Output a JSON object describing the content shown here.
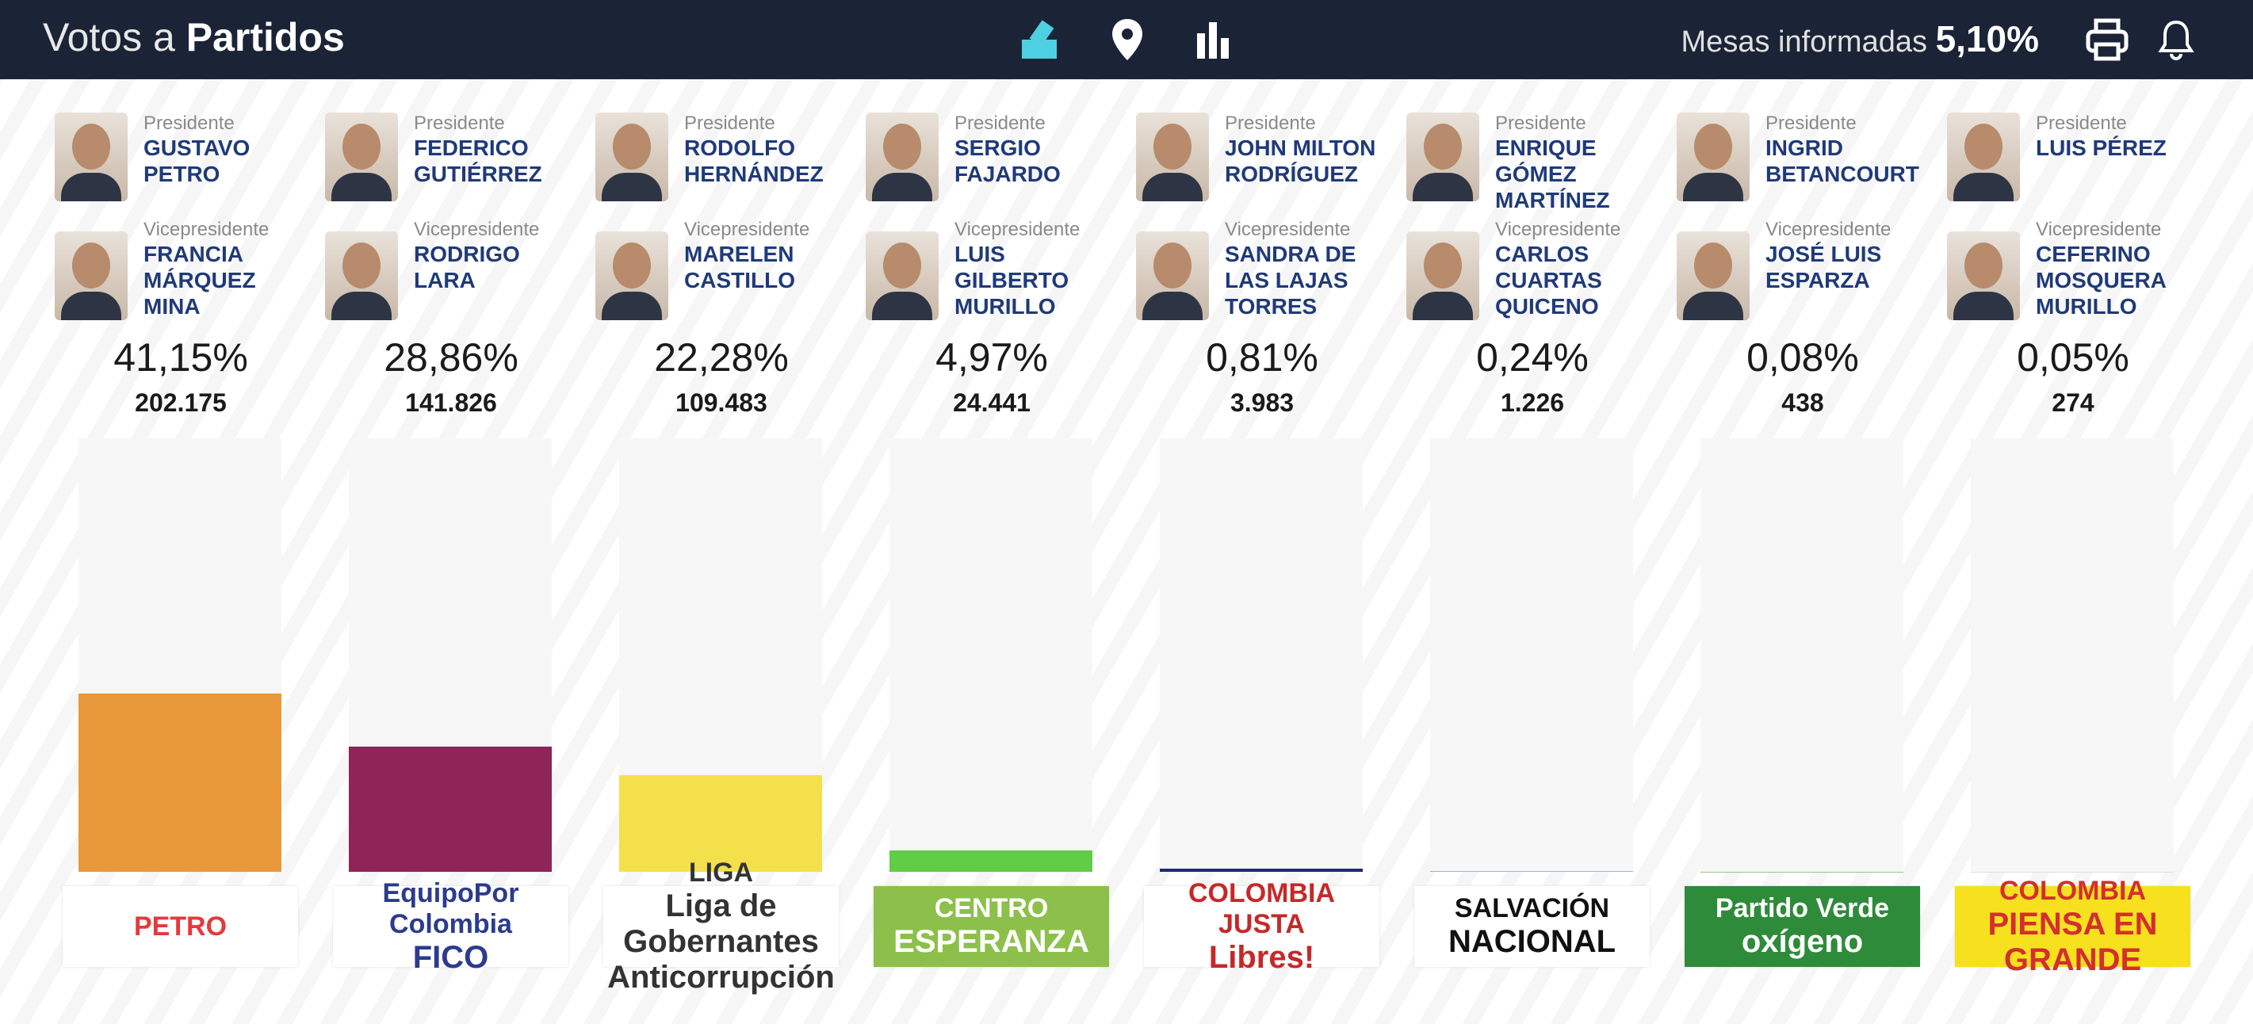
{
  "header": {
    "title_light": "Votos a",
    "title_bold": "Partidos",
    "tables_label": "Mesas informadas",
    "tables_value": "5,10%"
  },
  "president_label": "Presidente",
  "vice_label": "Vicepresidente",
  "candidates": [
    {
      "president": "GUSTAVO PETRO",
      "vice": "FRANCIA MÁRQUEZ MINA",
      "votes": "202.175",
      "logo": {
        "lines": [
          "PETRO"
        ],
        "bg": "#ffffff",
        "fg": "#e5393c"
      }
    },
    {
      "president": "FEDERICO GUTIÉRREZ",
      "vice": "RODRIGO LARA",
      "votes": "141.826",
      "logo": {
        "lines": [
          "EquipoPor Colombia",
          "FICO"
        ],
        "bg": "#ffffff",
        "fg": "#2b3b8f"
      }
    },
    {
      "president": "RODOLFO HERNÁNDEZ",
      "vice": "MARELEN CASTILLO",
      "votes": "109.483",
      "logo": {
        "lines": [
          "LIGA",
          "Liga de Gobernantes Anticorrupción"
        ],
        "bg": "#ffffff",
        "fg": "#333333"
      }
    },
    {
      "president": "SERGIO FAJARDO",
      "vice": "LUIS GILBERTO MURILLO",
      "votes": "24.441",
      "logo": {
        "lines": [
          "CENTRO",
          "ESPERANZA"
        ],
        "bg": "#8cc04b",
        "fg": "#ffffff"
      }
    },
    {
      "president": "JOHN MILTON RODRÍGUEZ",
      "vice": "SANDRA DE LAS LAJAS TORRES",
      "votes": "3.983",
      "logo": {
        "lines": [
          "COLOMBIA JUSTA",
          "Libres!"
        ],
        "bg": "#ffffff",
        "fg": "#c62828"
      }
    },
    {
      "president": "ENRIQUE GÓMEZ MARTÍNEZ",
      "vice": "CARLOS CUARTAS QUICENO",
      "votes": "1.226",
      "logo": {
        "lines": [
          "SALVACIÓN",
          "NACIONAL"
        ],
        "bg": "#ffffff",
        "fg": "#111111"
      }
    },
    {
      "president": "INGRID BETANCOURT",
      "vice": "JOSÉ LUIS ESPARZA",
      "votes": "438",
      "logo": {
        "lines": [
          "Partido Verde",
          "oxígeno"
        ],
        "bg": "#2e8b3a",
        "fg": "#ffffff"
      }
    },
    {
      "president": "LUIS PÉREZ",
      "vice": "CEFERINO MOSQUERA MURILLO",
      "votes": "274",
      "logo": {
        "lines": [
          "COLOMBIA",
          "PIENSA EN GRANDE"
        ],
        "bg": "#f7e11e",
        "fg": "#d32f2f"
      }
    }
  ],
  "chart_data": {
    "type": "bar",
    "ylim": [
      0,
      100
    ],
    "values": [
      41.15,
      28.86,
      22.28,
      4.97,
      0.81,
      0.24,
      0.08,
      0.05
    ],
    "value_labels": [
      "41,15%",
      "28,86%",
      "22,28%",
      "4,97%",
      "0,81%",
      "0,24%",
      "0,08%",
      "0,05%"
    ],
    "colors": [
      "#e9983a",
      "#8f2459",
      "#f3e04b",
      "#5fcd45",
      "#1d2a72",
      "#8fb6e6",
      "#9bc48a",
      "#e0e0e0"
    ]
  }
}
